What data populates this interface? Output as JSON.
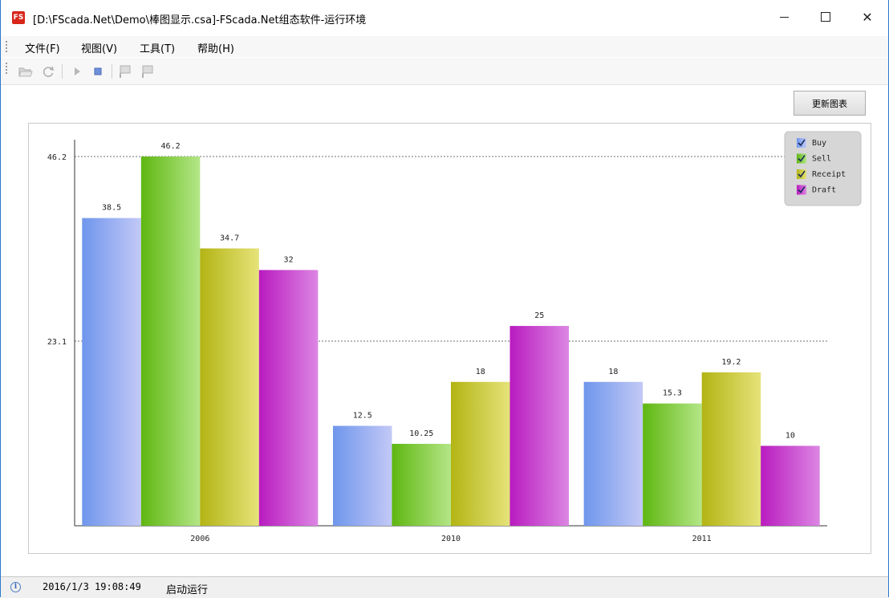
{
  "window": {
    "title": "[D:\\FScada.Net\\Demo\\棒图显示.csa]-FScada.Net组态软件-运行环境",
    "app_icon_text": "FS"
  },
  "menu": {
    "items": [
      {
        "label": "文件(F)"
      },
      {
        "label": "视图(V)"
      },
      {
        "label": "工具(T)"
      },
      {
        "label": "帮助(H)"
      }
    ]
  },
  "toolbar": {
    "icons": [
      "open-folder-icon",
      "refresh-icon",
      "play-icon",
      "stop-icon",
      "screen-a-icon",
      "screen-b-icon"
    ]
  },
  "update_button_label": "更新图表",
  "status": {
    "timestamp": "2016/1/3 19:08:49",
    "message": "启动运行"
  },
  "chart_data": {
    "type": "bar",
    "categories": [
      "2006",
      "2010",
      "2011"
    ],
    "series": [
      {
        "name": "Buy",
        "values": [
          38.5,
          12.5,
          18
        ],
        "color_from": "#6f96ec",
        "color_to": "#c3c9f6"
      },
      {
        "name": "Sell",
        "values": [
          46.2,
          10.25,
          15.3
        ],
        "color_from": "#5fb711",
        "color_to": "#b4e687"
      },
      {
        "name": "Receipt",
        "values": [
          34.7,
          18,
          19.2
        ],
        "color_from": "#b3b414",
        "color_to": "#e6e37a"
      },
      {
        "name": "Draft",
        "values": [
          32,
          25,
          10
        ],
        "color_from": "#b91bbf",
        "color_to": "#dc86e3"
      }
    ],
    "value_labels": [
      [
        "38.5",
        "46.2",
        "34.7",
        "32"
      ],
      [
        "12.5",
        "10.25",
        "18",
        "25"
      ],
      [
        "18",
        "15.3",
        "19.2",
        "10"
      ]
    ],
    "yticks": [
      {
        "value": 23.1,
        "label": "23.1"
      },
      {
        "value": 46.2,
        "label": "46.2"
      }
    ],
    "ylim": [
      0,
      46.2
    ],
    "grid": "dotted horizontal at ticks",
    "legend_position": "top-right",
    "title": "",
    "xlabel": "",
    "ylabel": ""
  }
}
